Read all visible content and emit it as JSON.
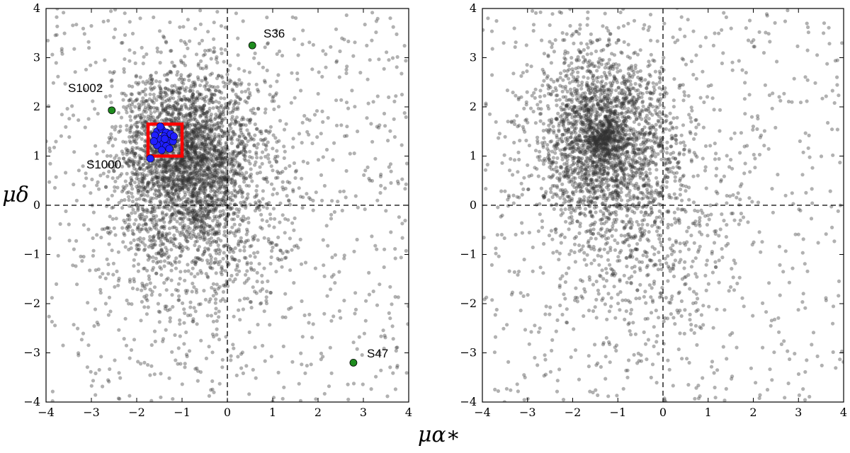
{
  "figure": {
    "xlabel": "μα∗",
    "ylabel": "μδ"
  },
  "chart_data": [
    {
      "type": "scatter",
      "panel": "left",
      "xlim": [
        -4,
        4
      ],
      "ylim": [
        -4,
        4
      ],
      "xticks": [
        "−4",
        "−3",
        "−2",
        "−1",
        "0",
        "1",
        "2",
        "3",
        "4"
      ],
      "yticks": [
        "−4",
        "−3",
        "−2",
        "−1",
        "0",
        "1",
        "2",
        "3",
        "4"
      ],
      "xlabel": "μα∗",
      "ylabel": "μδ",
      "reference_lines": {
        "x": 0,
        "y": 0,
        "style": "dashed"
      },
      "grid": false,
      "field_stars": {
        "color": "#333333",
        "opacity": 0.38,
        "count": 4200,
        "note_center": [
          -0.9,
          1.0
        ]
      },
      "selection_box": {
        "x": [
          -1.75,
          -1.0
        ],
        "y": [
          1.0,
          1.65
        ],
        "color": "#ff0000"
      },
      "cluster_members": {
        "color": "#1f1fff",
        "points": [
          [
            -1.55,
            1.5
          ],
          [
            -1.45,
            1.55
          ],
          [
            -1.35,
            1.48
          ],
          [
            -1.4,
            1.4
          ],
          [
            -1.5,
            1.35
          ],
          [
            -1.3,
            1.3
          ],
          [
            -1.6,
            1.42
          ],
          [
            -1.42,
            1.25
          ],
          [
            -1.25,
            1.45
          ],
          [
            -1.35,
            1.2
          ],
          [
            -1.55,
            1.22
          ],
          [
            -1.2,
            1.3
          ],
          [
            -1.48,
            1.6
          ],
          [
            -1.38,
            1.35
          ],
          [
            -1.28,
            1.15
          ],
          [
            -1.62,
            1.3
          ],
          [
            -1.18,
            1.4
          ],
          [
            -1.45,
            1.12
          ],
          [
            -1.7,
            0.95
          ]
        ]
      },
      "highlighted_stars": [
        {
          "label": "S36",
          "x": 0.55,
          "y": 3.25,
          "color": "#1e8c1e"
        },
        {
          "label": "S1002",
          "x": -2.55,
          "y": 1.93,
          "color": "#1e8c1e"
        },
        {
          "label": "S47",
          "x": 2.78,
          "y": -3.2,
          "color": "#1e8c1e"
        }
      ],
      "labels": [
        {
          "text": "S36"
        },
        {
          "text": "S1002"
        },
        {
          "text": "S1000"
        },
        {
          "text": "S47"
        }
      ]
    },
    {
      "type": "scatter",
      "panel": "right",
      "xlim": [
        -4,
        4
      ],
      "ylim": [
        -4,
        4
      ],
      "xticks": [
        "−4",
        "−3",
        "−2",
        "−1",
        "0",
        "1",
        "2",
        "3",
        "4"
      ],
      "yticks": [
        "−4",
        "−3",
        "−2",
        "−1",
        "0",
        "1",
        "2",
        "3",
        "4"
      ],
      "reference_lines": {
        "x": 0,
        "y": 0,
        "style": "dashed"
      },
      "grid": false,
      "field_stars": {
        "color": "#333333",
        "opacity": 0.38,
        "count": 3600,
        "note_center": [
          -1.35,
          1.35
        ]
      }
    }
  ]
}
